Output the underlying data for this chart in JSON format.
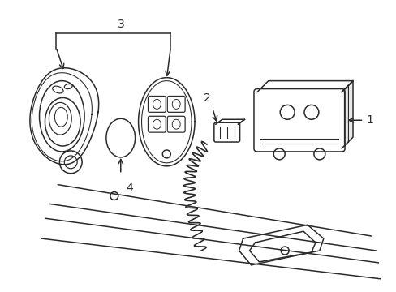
{
  "bg_color": "#ffffff",
  "line_color": "#2a2a2a",
  "line_width": 1.1,
  "label_fontsize": 9,
  "figsize": [
    4.89,
    3.6
  ],
  "dpi": 100
}
